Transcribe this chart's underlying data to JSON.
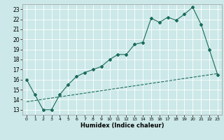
{
  "xlabel": "Humidex (Indice chaleur)",
  "ylabel": "",
  "bg_color": "#cce8e8",
  "grid_color": "#ffffff",
  "line_color": "#1a6b5a",
  "xlim": [
    -0.5,
    23.5
  ],
  "ylim": [
    12.5,
    23.5
  ],
  "xticks": [
    0,
    1,
    2,
    3,
    4,
    5,
    6,
    7,
    8,
    9,
    10,
    11,
    12,
    13,
    14,
    15,
    16,
    17,
    18,
    19,
    20,
    21,
    22,
    23
  ],
  "yticks": [
    13,
    14,
    15,
    16,
    17,
    18,
    19,
    20,
    21,
    22,
    23
  ],
  "line1_x": [
    0,
    1,
    2,
    3,
    4,
    5,
    6,
    7,
    8,
    9,
    10,
    11,
    12,
    13,
    14,
    15,
    16,
    17,
    18,
    19,
    20,
    21,
    22,
    23
  ],
  "line1_y": [
    16.0,
    14.5,
    13.0,
    13.0,
    14.5,
    15.5,
    16.3,
    16.7,
    17.0,
    17.3,
    18.0,
    18.5,
    18.5,
    19.5,
    19.7,
    22.1,
    21.7,
    22.2,
    21.9,
    22.5,
    23.2,
    21.5,
    19.0,
    16.5
  ],
  "line2_x": [
    0,
    23
  ],
  "line2_y": [
    13.8,
    16.6
  ]
}
